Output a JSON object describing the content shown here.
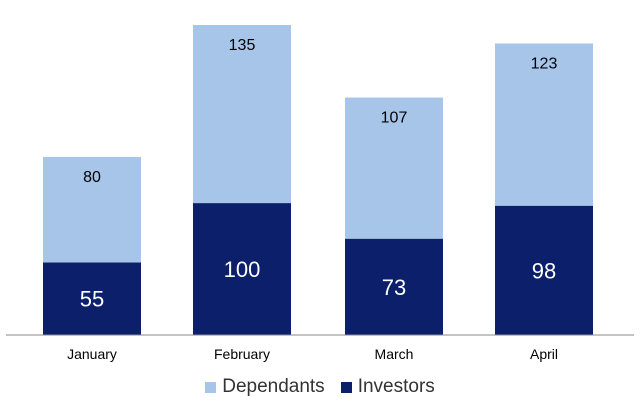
{
  "chart_data": {
    "type": "bar",
    "stacked": true,
    "categories": [
      "January",
      "February",
      "March",
      "April"
    ],
    "series": [
      {
        "name": "Investors",
        "values": [
          55,
          100,
          73,
          98
        ],
        "color": "#0b1f6b"
      },
      {
        "name": "Dependants",
        "values": [
          80,
          135,
          107,
          123
        ],
        "color": "#a6c5e8"
      }
    ],
    "title": "",
    "xlabel": "",
    "ylabel": "",
    "ylim": [
      0,
      240
    ],
    "grid": false,
    "legend_position": "bottom"
  },
  "legend": {
    "dependants_label": "Dependants",
    "investors_label": "Investors"
  }
}
